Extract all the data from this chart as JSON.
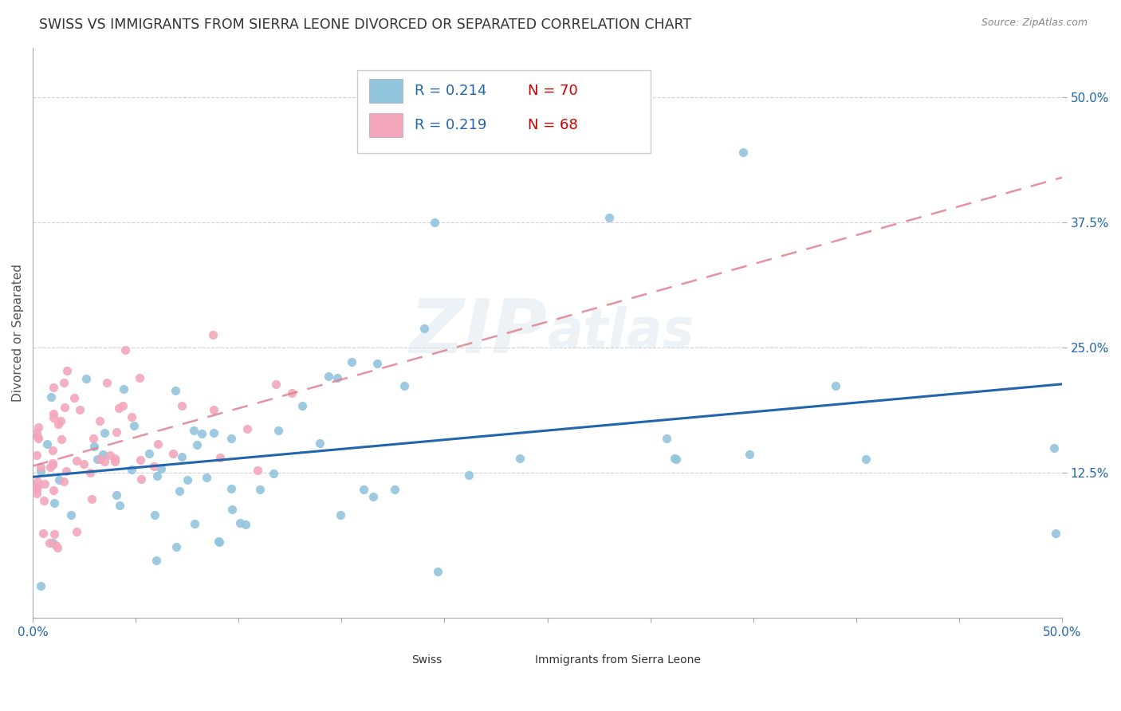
{
  "title": "SWISS VS IMMIGRANTS FROM SIERRA LEONE DIVORCED OR SEPARATED CORRELATION CHART",
  "source_text": "Source: ZipAtlas.com",
  "ylabel": "Divorced or Separated",
  "watermark": "ZIPatlas",
  "xlim": [
    0.0,
    0.5
  ],
  "ylim": [
    -0.02,
    0.55
  ],
  "ytick_positions": [
    0.125,
    0.25,
    0.375,
    0.5
  ],
  "ytick_labels": [
    "12.5%",
    "25.0%",
    "37.5%",
    "50.0%"
  ],
  "series_blue": {
    "label": "Swiss",
    "scatter_color": "#92c5de",
    "trend_color": "#2166ac",
    "R": 0.214,
    "N": 70
  },
  "series_pink": {
    "label": "Immigrants from Sierra Leone",
    "scatter_color": "#f4a6bd",
    "trend_color": "#d6604d",
    "R": 0.219,
    "N": 68
  },
  "legend_text_color": "#2166ac",
  "legend_N_color": "#cc0000",
  "grid_color": "#cccccc",
  "background_color": "#ffffff",
  "title_fontsize": 12.5,
  "axis_label_fontsize": 11,
  "tick_fontsize": 11,
  "legend_fontsize": 13
}
